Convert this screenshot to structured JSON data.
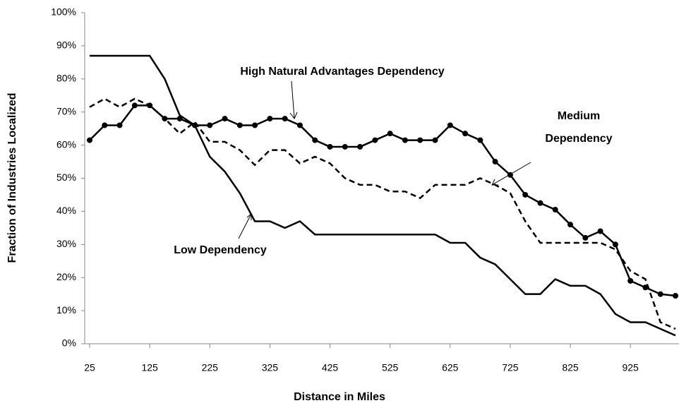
{
  "chart_data": {
    "type": "line",
    "x_label": "Distance in Miles",
    "y_label": "Fraction of Industries Localized",
    "x": [
      25,
      50,
      75,
      100,
      125,
      150,
      175,
      200,
      225,
      250,
      275,
      300,
      325,
      350,
      375,
      400,
      425,
      450,
      475,
      500,
      525,
      550,
      575,
      600,
      625,
      650,
      675,
      700,
      725,
      750,
      775,
      800,
      825,
      850,
      875,
      900,
      925,
      950,
      975,
      1000
    ],
    "series": [
      {
        "name": "High Natural Advantages Dependency",
        "color": "#000000",
        "style": "solid",
        "markers": true,
        "values": [
          61.5,
          66,
          66,
          72,
          72,
          68,
          68,
          66,
          66,
          68,
          66,
          66,
          68,
          68,
          66,
          61.5,
          59.5,
          59.5,
          59.5,
          61.5,
          63.5,
          61.5,
          61.5,
          61.5,
          66,
          63.5,
          61.5,
          55,
          51,
          45,
          42.5,
          40.5,
          36,
          32,
          34,
          30,
          19,
          17,
          15,
          14.5
        ]
      },
      {
        "name": "Medium Dependency",
        "color": "#000000",
        "style": "dashed",
        "markers": false,
        "values": [
          71.5,
          74,
          71.5,
          74,
          72,
          68,
          63.5,
          67,
          61,
          61,
          58.5,
          54,
          58.5,
          58.5,
          54.5,
          56.5,
          54.5,
          50,
          48,
          48,
          46,
          46,
          44,
          48,
          48,
          48,
          50,
          48,
          45.5,
          37,
          30.5,
          30.5,
          30.5,
          30.5,
          30.5,
          28.5,
          22,
          19.5,
          6.5,
          4.5
        ]
      },
      {
        "name": "Low Dependency",
        "color": "#000000",
        "style": "solid",
        "markers": false,
        "values": [
          87,
          87,
          87,
          87,
          87,
          80,
          69,
          66,
          56.5,
          52,
          45.5,
          37,
          37,
          35,
          37,
          33,
          33,
          33,
          33,
          33,
          33,
          33,
          33,
          33,
          30.5,
          30.5,
          26,
          24,
          19.5,
          15,
          15,
          19.5,
          17.5,
          17.5,
          15,
          9,
          6.5,
          6.5,
          4.5,
          2.5
        ]
      }
    ],
    "annotations": [
      {
        "lines": [
          "High Natural Advantages Dependency"
        ]
      },
      {
        "lines": [
          "Medium",
          "Dependency"
        ]
      },
      {
        "lines": [
          "Low Dependency"
        ]
      }
    ],
    "xlim": [
      25,
      1000
    ],
    "xticks": [
      25,
      125,
      225,
      325,
      425,
      525,
      625,
      725,
      825,
      925
    ],
    "ylim": [
      0,
      100
    ],
    "yticks": [
      {
        "value": 0,
        "label": "0%"
      },
      {
        "value": 10,
        "label": "10%"
      },
      {
        "value": 20,
        "label": "20%"
      },
      {
        "value": 30,
        "label": "30%"
      },
      {
        "value": 40,
        "label": "40%"
      },
      {
        "value": 50,
        "label": "50%"
      },
      {
        "value": 60,
        "label": "60%"
      },
      {
        "value": 70,
        "label": "70%"
      },
      {
        "value": 80,
        "label": "80%"
      },
      {
        "value": 90,
        "label": "90%"
      },
      {
        "value": 100,
        "label": "100%"
      }
    ],
    "grid": false
  }
}
